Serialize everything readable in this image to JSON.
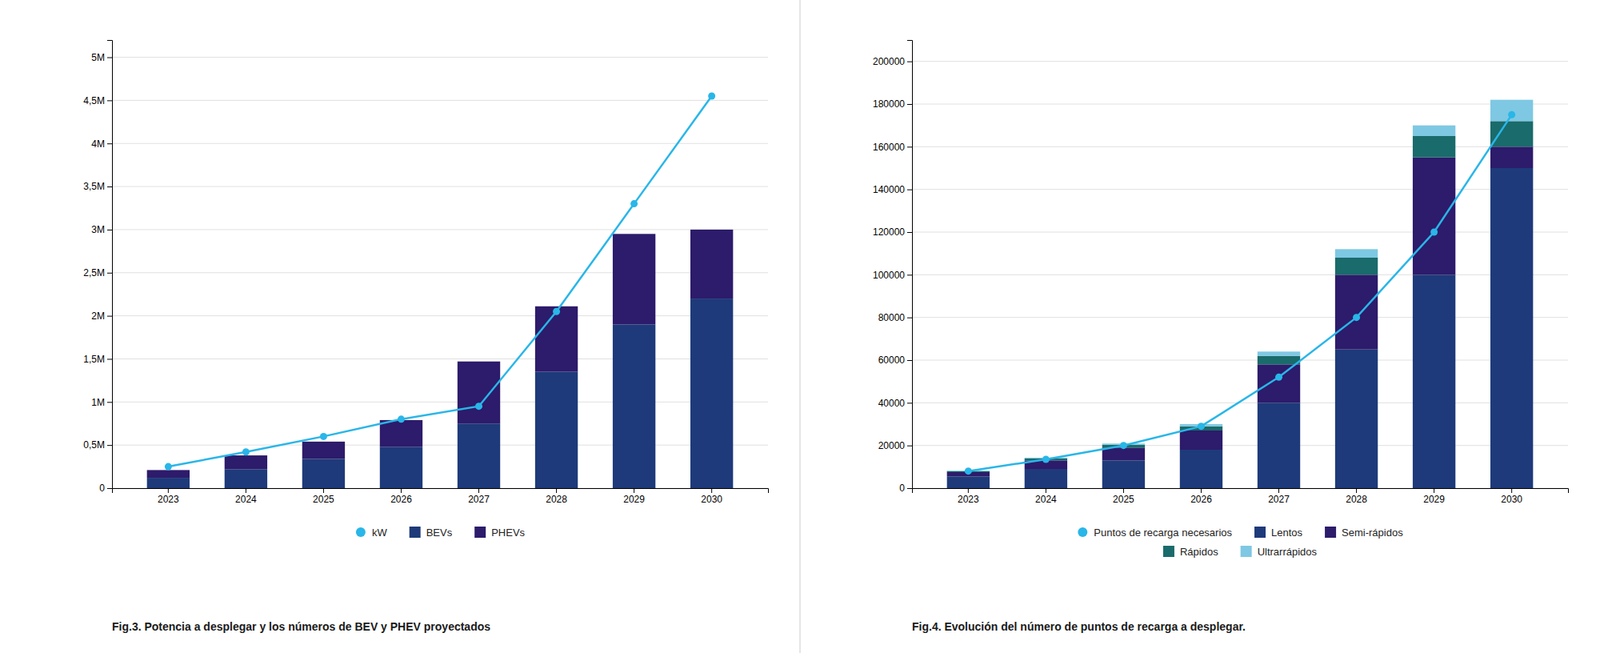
{
  "chart_data": [
    {
      "type": "bar",
      "stacked": true,
      "grid": true,
      "legend": "bottom",
      "title": "Fig.3. Potencia a desplegar y los números de BEV y PHEV proyectados",
      "categories": [
        "2023",
        "2024",
        "2025",
        "2026",
        "2027",
        "2028",
        "2029",
        "2030"
      ],
      "series": [
        {
          "name": "kW",
          "type": "line",
          "marker": "circle",
          "color": "#29b6e8",
          "values": [
            250000,
            420000,
            600000,
            800000,
            950000,
            2050000,
            3300000,
            4550000
          ]
        },
        {
          "name": "BEVs",
          "type": "bar",
          "color": "#1e3a7a",
          "values": [
            120000,
            220000,
            340000,
            480000,
            750000,
            1350000,
            1900000,
            2200000
          ]
        },
        {
          "name": "PHEVs",
          "type": "bar",
          "color": "#2d1b6b",
          "values": [
            90000,
            160000,
            200000,
            310000,
            720000,
            760000,
            1050000,
            800000
          ]
        }
      ],
      "ylim": [
        0,
        5200000
      ],
      "yticks": [
        0,
        {
          "value": 500000,
          "label": "0,5M"
        },
        {
          "value": 1000000,
          "label": "1M"
        },
        {
          "value": 1500000,
          "label": "1,5M"
        },
        {
          "value": 2000000,
          "label": "2M"
        },
        {
          "value": 2500000,
          "label": "2,5M"
        },
        {
          "value": 3000000,
          "label": "3M"
        },
        {
          "value": 3500000,
          "label": "3,5M"
        },
        {
          "value": 4000000,
          "label": "4M"
        },
        {
          "value": 4500000,
          "label": "4,5M"
        },
        {
          "value": 5000000,
          "label": "5M"
        }
      ]
    },
    {
      "type": "bar",
      "stacked": true,
      "grid": true,
      "legend": "bottom",
      "title": "Fig.4. Evolución del número de puntos de recarga a desplegar.",
      "categories": [
        "2023",
        "2024",
        "2025",
        "2026",
        "2027",
        "2028",
        "2029",
        "2030"
      ],
      "series": [
        {
          "name": "Puntos de recarga necesarios",
          "type": "line",
          "marker": "circle",
          "color": "#29b6e8",
          "values": [
            8000,
            13500,
            20000,
            29000,
            52000,
            80000,
            120000,
            175000
          ]
        },
        {
          "name": "Lentos",
          "type": "bar",
          "color": "#1e3a7a",
          "values": [
            5500,
            9000,
            13000,
            18000,
            40000,
            65000,
            100000,
            150000
          ]
        },
        {
          "name": "Semi-rápidos",
          "type": "bar",
          "color": "#2d1b6b",
          "values": [
            2000,
            4000,
            6000,
            9000,
            18000,
            35000,
            55000,
            10000
          ]
        },
        {
          "name": "Rápidos",
          "type": "bar",
          "color": "#1a6b6b",
          "values": [
            500,
            900,
            1300,
            2000,
            4000,
            8000,
            10000,
            12000
          ]
        },
        {
          "name": "Ultrarrápidos",
          "type": "bar",
          "color": "#7ec8e3",
          "values": [
            200,
            400,
            600,
            1000,
            2000,
            4000,
            5000,
            10000
          ]
        }
      ],
      "ylim": [
        0,
        210000
      ],
      "yticks": [
        0,
        20000,
        40000,
        60000,
        80000,
        100000,
        120000,
        140000,
        160000,
        180000,
        200000
      ]
    }
  ]
}
